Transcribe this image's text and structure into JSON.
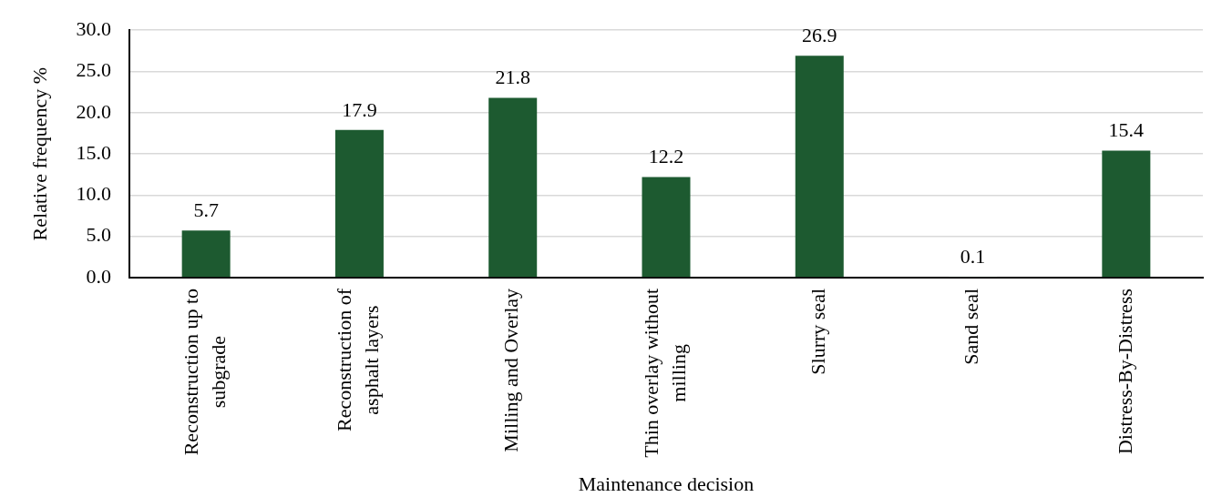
{
  "chart_data": {
    "type": "bar",
    "xlabel": "Maintenance decision",
    "ylabel": "Relative frequency %",
    "categories": [
      "Reconstruction up to subgrade",
      "Reconstruction of asphalt layers",
      "Milling and Overlay",
      "Thin overlay without milling",
      "Slurry seal",
      "Sand seal",
      "Distress-By-Distress"
    ],
    "values": [
      5.7,
      17.9,
      21.8,
      12.2,
      26.9,
      0.1,
      15.4
    ],
    "color": "#1d5a30",
    "ylim": [
      0,
      30
    ],
    "yticks": [
      {
        "value": 0,
        "label": "0.0"
      },
      {
        "value": 5,
        "label": "5.0"
      },
      {
        "value": 10,
        "label": "10.0"
      },
      {
        "value": 15,
        "label": "15.0"
      },
      {
        "value": 20,
        "label": "20.0"
      },
      {
        "value": 25,
        "label": "25.0"
      },
      {
        "value": 30,
        "label": "30.0"
      }
    ],
    "grid": "y",
    "data_labels": true
  }
}
